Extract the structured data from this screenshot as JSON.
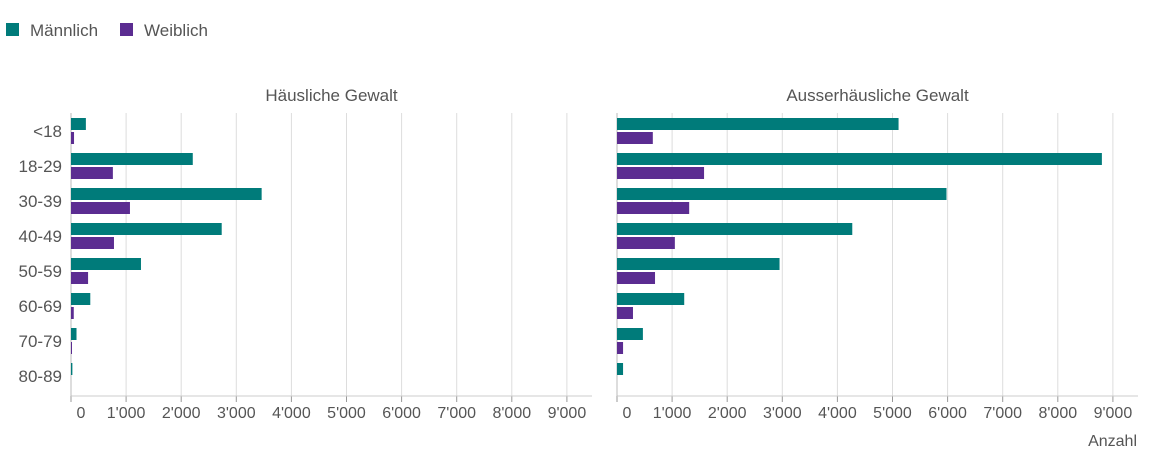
{
  "chart_data": {
    "type": "bar",
    "orientation": "horizontal",
    "legend": {
      "position": "top-left",
      "entries": [
        "Männlich",
        "Weiblich"
      ]
    },
    "colors": {
      "Männlich": "#007b7a",
      "Weiblich": "#5b2c91"
    },
    "categories": [
      "<18",
      "18-29",
      "30-39",
      "40-49",
      "50-59",
      "60-69",
      "70-79",
      "80-89"
    ],
    "xlabel": "Anzahl",
    "xlim": [
      0,
      9500
    ],
    "xticks": [
      0,
      1000,
      2000,
      3000,
      4000,
      5000,
      6000,
      7000,
      8000,
      9000
    ],
    "xtick_labels": [
      "0",
      "1'000",
      "2'000",
      "3'000",
      "4'000",
      "5'000",
      "6'000",
      "7'000",
      "8'000",
      "9'000"
    ],
    "grid": true,
    "panels": [
      {
        "title": "Häusliche Gewalt",
        "series": [
          {
            "name": "Männlich",
            "values": [
              270,
              2210,
              3460,
              2735,
              1270,
              350,
              100,
              25
            ]
          },
          {
            "name": "Weiblich",
            "values": [
              55,
              760,
              1070,
              780,
              310,
              50,
              5,
              0
            ]
          }
        ]
      },
      {
        "title": "Ausserhäusliche Gewalt",
        "series": [
          {
            "name": "Männlich",
            "values": [
              5110,
              8800,
              5980,
              4270,
              2950,
              1220,
              470,
              110
            ]
          },
          {
            "name": "Weiblich",
            "values": [
              650,
              1580,
              1310,
              1050,
              690,
              290,
              110,
              0
            ]
          }
        ]
      }
    ]
  }
}
